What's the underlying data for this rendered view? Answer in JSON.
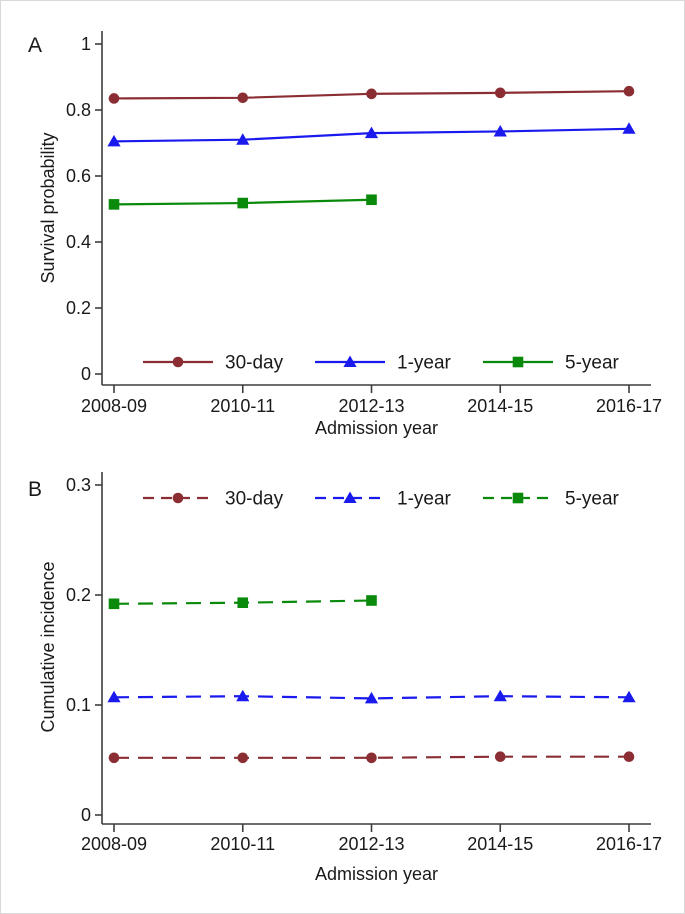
{
  "chart_data": [
    {
      "type": "line",
      "panel_label": "A",
      "xlabel": "Admission year",
      "ylabel": "Survival probability",
      "categories": [
        "2008-09",
        "2010-11",
        "2012-13",
        "2014-15",
        "2016-17"
      ],
      "ylim": [
        0,
        1
      ],
      "yticks": [
        0,
        0.2,
        0.4,
        0.6,
        0.8,
        1
      ],
      "ytick_labels": [
        "0",
        "0.2",
        "0.4",
        "0.6",
        "0.8",
        "1"
      ],
      "grid": false,
      "line_style": "solid",
      "legend_position": "inside-bottom",
      "series": [
        {
          "name": "30-day",
          "marker": "circle",
          "color": "#8b2e34",
          "values": [
            0.835,
            0.837,
            0.849,
            0.852,
            0.857
          ]
        },
        {
          "name": "1-year",
          "marker": "triangle",
          "color": "#1a1aee",
          "values": [
            0.705,
            0.71,
            0.73,
            0.735,
            0.743
          ]
        },
        {
          "name": "5-year",
          "marker": "square",
          "color": "#0a8a0a",
          "values": [
            0.514,
            0.518,
            0.528,
            null,
            null
          ]
        }
      ]
    },
    {
      "type": "line",
      "panel_label": "B",
      "xlabel": "Admission year",
      "ylabel": "Cumulative incidence",
      "categories": [
        "2008-09",
        "2010-11",
        "2012-13",
        "2014-15",
        "2016-17"
      ],
      "ylim": [
        0,
        0.3
      ],
      "yticks": [
        0,
        0.1,
        0.2,
        0.3
      ],
      "ytick_labels": [
        "0",
        "0.1",
        "0.2",
        "0.3"
      ],
      "grid": false,
      "line_style": "dashed",
      "legend_position": "inside-top",
      "series": [
        {
          "name": "30-day",
          "marker": "circle",
          "color": "#8b2e34",
          "values": [
            0.052,
            0.052,
            0.052,
            0.053,
            0.053
          ]
        },
        {
          "name": "1-year",
          "marker": "triangle",
          "color": "#1a1aee",
          "values": [
            0.107,
            0.108,
            0.106,
            0.108,
            0.107
          ]
        },
        {
          "name": "5-year",
          "marker": "square",
          "color": "#0a8a0a",
          "values": [
            0.192,
            0.193,
            0.195,
            null,
            null
          ]
        }
      ]
    }
  ]
}
